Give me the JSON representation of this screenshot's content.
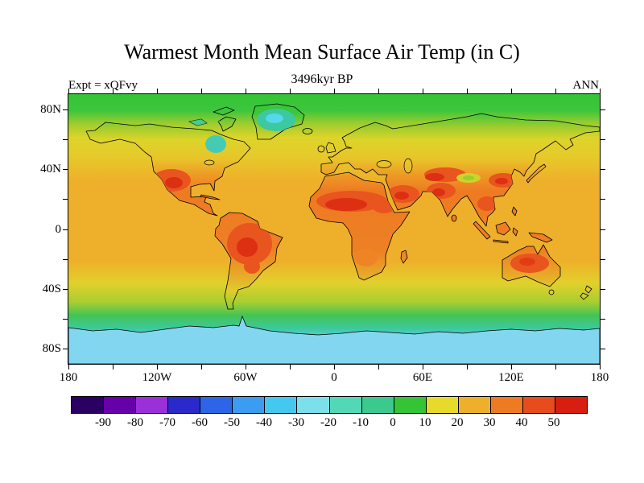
{
  "title": "Warmest Month Mean Surface Air Temp (in C)",
  "subtitle": "3496kyr BP",
  "experiment_label": "Expt = xQFvy",
  "season_label": "ANN",
  "axes": {
    "lat_labels": [
      "80N",
      "40N",
      "0",
      "40S",
      "80S"
    ],
    "lat_fracs": [
      0.0556,
      0.2778,
      0.5,
      0.7222,
      0.9444
    ],
    "lat_ticks": [
      80,
      60,
      40,
      20,
      0,
      -20,
      -40,
      -60,
      -80
    ],
    "lon_labels": [
      "180",
      "120W",
      "60W",
      "0",
      "60E",
      "120E",
      "180"
    ],
    "lon_fracs": [
      0,
      0.1667,
      0.3333,
      0.5,
      0.6667,
      0.8333,
      1
    ],
    "lon_ticks": [
      -180,
      -150,
      -120,
      -90,
      -60,
      -30,
      0,
      30,
      60,
      90,
      120,
      150,
      180
    ]
  },
  "colorbar": {
    "tick_labels": [
      "-90",
      "-80",
      "-70",
      "-60",
      "-50",
      "-40",
      "-30",
      "-20",
      "-10",
      "0",
      "10",
      "20",
      "30",
      "40",
      "50"
    ],
    "colors": [
      "#2b0063",
      "#6600a8",
      "#9b30d9",
      "#2929cc",
      "#2e64e8",
      "#3b9cf2",
      "#45c8f0",
      "#7ce0ea",
      "#52d8b4",
      "#3cc98e",
      "#35c435",
      "#e6da2a",
      "#eeb02a",
      "#ee7a22",
      "#e84c1c",
      "#d81e10"
    ]
  },
  "chart_data": {
    "type": "heatmap",
    "title": "Warmest Month Mean Surface Air Temp (in C)",
    "subtitle": "3496kyr BP",
    "experiment": "xQFvy",
    "season": "ANN",
    "units": "degrees C",
    "projection": "equirectangular global map, 90N-90S, 180W-180E",
    "x_tick_labels": [
      "180",
      "120W",
      "60W",
      "0",
      "60E",
      "120E",
      "180"
    ],
    "y_tick_labels": [
      "80N",
      "40N",
      "0",
      "40S",
      "80S"
    ],
    "colorbar_levels": [
      -90,
      -80,
      -70,
      -60,
      -50,
      -40,
      -30,
      -20,
      -10,
      0,
      10,
      20,
      30,
      40,
      50
    ],
    "colorbar_colors": [
      "#2b0063",
      "#6600a8",
      "#9b30d9",
      "#2929cc",
      "#2e64e8",
      "#3b9cf2",
      "#45c8f0",
      "#7ce0ea",
      "#52d8b4",
      "#3cc98e",
      "#35c435",
      "#e6da2a",
      "#eeb02a",
      "#ee7a22",
      "#e84c1c",
      "#d81e10"
    ],
    "legend_position": "bottom horizontal colorbar",
    "grid": false,
    "approx_regional_values_C": {
      "arctic_ocean": 5,
      "greenland_interior": -5,
      "canadian_archipelago": 0,
      "siberia": 15,
      "europe": 22,
      "north_america_midlatitudes": 25,
      "southwest_north_america": 40,
      "amazon_basin": 40,
      "sahara": 45,
      "arabia": 42,
      "north_india": 42,
      "central_asia": 38,
      "east_china": 38,
      "tibetan_plateau": 12,
      "southeast_asia": 32,
      "tropical_oceans": 27,
      "midlatitude_oceans": 20,
      "southern_ocean": 5,
      "antarctic_coast": -5,
      "antarctica_interior": -15,
      "australia_interior": 38
    }
  }
}
